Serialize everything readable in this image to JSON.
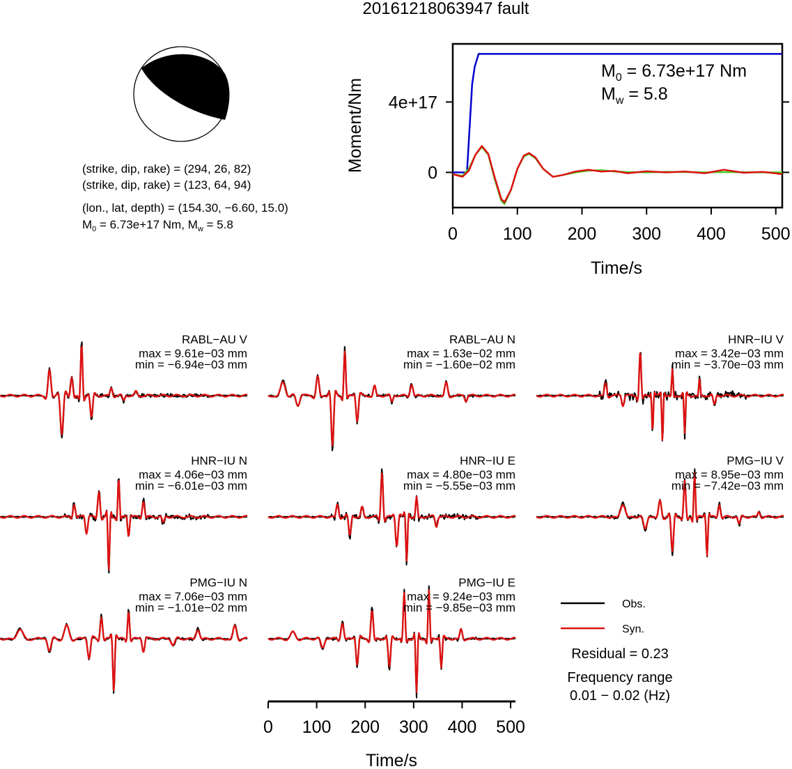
{
  "title": "20161218063947 fault",
  "mechanism": {
    "nodal1": "(strike, dip, rake) = (294, 26, 82)",
    "nodal2": "(strike, dip, rake) = (123, 64, 94)",
    "location": "(lon., lat, depth) = (154.30, −6.60, 15.0)",
    "m0_prefix": "M",
    "m0_sub": "0",
    "m0_value": " = 6.73e+17 Nm, M",
    "mw_sub": "w",
    "mw_value": " = 5.8"
  },
  "chart_data": [
    {
      "type": "line",
      "name": "moment-rate",
      "xlabel": "Time/s",
      "ylabel": "Moment/Nm",
      "xlim": [
        0,
        510
      ],
      "ylim": [
        -2e+17,
        7.3e+17
      ],
      "xticks": [
        0,
        100,
        200,
        300,
        400,
        500
      ],
      "yticks": [
        {
          "value": 0,
          "label": "0"
        },
        {
          "value": 4e+17,
          "label": "4e+17"
        }
      ],
      "annotation": {
        "m0": "M",
        "m0_sub": "0",
        "m0_text": " = 6.73e+17 Nm",
        "mw": "M",
        "mw_sub": "w",
        "mw_text": " = 5.8"
      },
      "series": [
        {
          "color": "#0000cc",
          "x": [
            0,
            22,
            26,
            30,
            34,
            40,
            510
          ],
          "y": [
            0,
            0,
            2.5e+17,
            5e+17,
            6e+17,
            6.73e+17,
            6.73e+17
          ]
        },
        {
          "color": "#44cc22",
          "x": [
            0,
            15,
            25,
            35,
            45,
            55,
            65,
            75,
            80,
            90,
            100,
            110,
            118,
            128,
            140,
            155,
            170,
            190,
            210,
            230,
            250,
            270,
            300,
            330,
            360,
            390,
            420,
            450,
            480,
            510
          ],
          "y": [
            -1e+16,
            -2e+16,
            2e+16,
            1e+17,
            1.45e+17,
            1e+17,
            -4e+16,
            -1.6e+17,
            -1.8e+17,
            -1e+17,
            2e+16,
            9e+16,
            1.05e+17,
            8e+16,
            2e+16,
            -2.5e+16,
            -1.5e+16,
            0.0,
            1e+16,
            1.2e+16,
            5000000000000000.0,
            2000000000000000.0,
            0.0,
            3000000000000000.0,
            2000000000000000.0,
            0.0,
            2000000000000000.0,
            1000000000000000.0,
            0.0,
            0.0
          ]
        },
        {
          "color": "#dd1111",
          "x": [
            0,
            15,
            25,
            35,
            45,
            55,
            65,
            75,
            80,
            90,
            100,
            110,
            118,
            128,
            140,
            155,
            170,
            190,
            210,
            230,
            250,
            270,
            300,
            330,
            360,
            390,
            420,
            450,
            480,
            510
          ],
          "y": [
            -1e+16,
            -2.5e+16,
            1e+16,
            1e+17,
            1.5e+17,
            1.05e+17,
            -3e+16,
            -1.5e+17,
            -1.7e+17,
            -1e+17,
            2e+16,
            9.5e+16,
            1.1e+17,
            8.5e+16,
            2e+16,
            -2.5e+16,
            -1.5e+16,
            5000000000000000.0,
            1.5e+16,
            5000000000000000.0,
            8000000000000000.0,
            -5000000000000000.0,
            6000000000000000.0,
            0.0,
            5000000000000000.0,
            -5000000000000000.0,
            1.5e+16,
            -2000000000000000.0,
            3000000000000000.0,
            -1e+16
          ]
        }
      ]
    },
    {
      "type": "line",
      "name": "waveform-fits",
      "xlabel": "Time/s",
      "xlim": [
        0,
        510
      ],
      "xticks": [
        0,
        100,
        200,
        300,
        400,
        500
      ],
      "legend": {
        "obs": "Obs.",
        "syn": "Syn.",
        "obs_color": "#000000",
        "syn_color": "#dd1111"
      },
      "residual": "Residual = 0.23",
      "freq_label": "Frequency range",
      "freq_value": "0.01 − 0.02 (Hz)",
      "stations": [
        {
          "name": "RABL−AU V",
          "max": "max = 9.61e−03 mm",
          "min": "min = −6.94e−03 mm"
        },
        {
          "name": "RABL−AU N",
          "max": "max = 1.63e−02 mm",
          "min": "min = −1.60e−02 mm"
        },
        {
          "name": "HNR−IU V",
          "max": "max = 3.42e−03 mm",
          "min": "min = −3.70e−03 mm"
        },
        {
          "name": "HNR−IU N",
          "max": "max = 4.06e−03 mm",
          "min": "min = −6.01e−03 mm"
        },
        {
          "name": "HNR−IU E",
          "max": "max = 4.80e−03 mm",
          "min": "min = −5.55e−03 mm"
        },
        {
          "name": "PMG−IU V",
          "max": "max = 8.95e−03 mm",
          "min": "min = −7.42e−03 mm"
        },
        {
          "name": "PMG−IU N",
          "max": "max = 7.06e−03 mm",
          "min": "min = −1.01e−02 mm"
        },
        {
          "name": "PMG−IU E",
          "max": "max = 9.24e−03 mm",
          "min": "min = −9.85e−03 mm"
        }
      ]
    }
  ]
}
